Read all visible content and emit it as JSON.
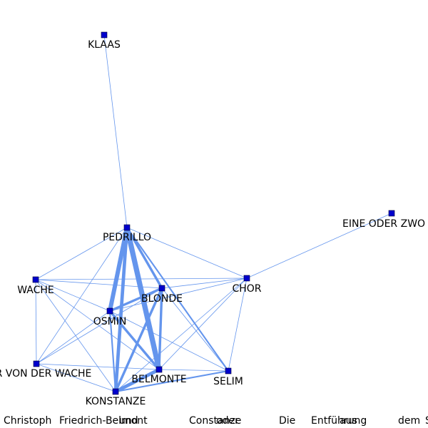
{
  "colors": {
    "edge": "#6495ED",
    "node_fill": "#0000CD",
    "node_stroke": "#000033"
  },
  "nodes": [
    {
      "id": "KLAAS",
      "label": "KLAAS"
    },
    {
      "id": "PEDRILLO",
      "label": "PEDRILLO"
    },
    {
      "id": "EINE ODER ZWO STIMMEN",
      "label": "EINE ODER ZWO ST"
    },
    {
      "id": "WACHE",
      "label": "WACHE"
    },
    {
      "id": "CHOR",
      "label": "CHOR"
    },
    {
      "id": "BLONDE",
      "label": "BLONDE"
    },
    {
      "id": "OSMIN",
      "label": "OSMIN"
    },
    {
      "id": "OFFIZIER VON DER WACHE",
      "label": "R VON DER WACHE"
    },
    {
      "id": "BELMONTE",
      "label": "BELMONTE"
    },
    {
      "id": "SELIM",
      "label": "SELIM"
    },
    {
      "id": "KONSTANZE",
      "label": "KONSTANZE"
    }
  ],
  "edges": [
    {
      "source": "KLAAS",
      "target": "PEDRILLO",
      "weight": 1
    },
    {
      "source": "PEDRILLO",
      "target": "WACHE",
      "weight": 1
    },
    {
      "source": "PEDRILLO",
      "target": "CHOR",
      "weight": 1
    },
    {
      "source": "PEDRILLO",
      "target": "BLONDE",
      "weight": 3
    },
    {
      "source": "PEDRILLO",
      "target": "OSMIN",
      "weight": 5
    },
    {
      "source": "PEDRILLO",
      "target": "OFFIZIER VON DER WACHE",
      "weight": 1
    },
    {
      "source": "PEDRILLO",
      "target": "BELMONTE",
      "weight": 6
    },
    {
      "source": "PEDRILLO",
      "target": "SELIM",
      "weight": 2
    },
    {
      "source": "PEDRILLO",
      "target": "KONSTANZE",
      "weight": 4
    },
    {
      "source": "CHOR",
      "target": "EINE ODER ZWO STIMMEN",
      "weight": 1
    },
    {
      "source": "WACHE",
      "target": "CHOR",
      "weight": 1
    },
    {
      "source": "WACHE",
      "target": "BLONDE",
      "weight": 1
    },
    {
      "source": "WACHE",
      "target": "OFFIZIER VON DER WACHE",
      "weight": 1
    },
    {
      "source": "WACHE",
      "target": "BELMONTE",
      "weight": 1
    },
    {
      "source": "WACHE",
      "target": "KONSTANZE",
      "weight": 1
    },
    {
      "source": "WACHE",
      "target": "OSMIN",
      "weight": 1
    },
    {
      "source": "CHOR",
      "target": "BLONDE",
      "weight": 1
    },
    {
      "source": "CHOR",
      "target": "OSMIN",
      "weight": 1
    },
    {
      "source": "CHOR",
      "target": "BELMONTE",
      "weight": 1
    },
    {
      "source": "CHOR",
      "target": "SELIM",
      "weight": 1
    },
    {
      "source": "CHOR",
      "target": "KONSTANZE",
      "weight": 1
    },
    {
      "source": "BLONDE",
      "target": "OSMIN",
      "weight": 3
    },
    {
      "source": "BLONDE",
      "target": "BELMONTE",
      "weight": 3
    },
    {
      "source": "BLONDE",
      "target": "KONSTANZE",
      "weight": 3
    },
    {
      "source": "BLONDE",
      "target": "SELIM",
      "weight": 1
    },
    {
      "source": "BLONDE",
      "target": "OFFIZIER VON DER WACHE",
      "weight": 1
    },
    {
      "source": "OSMIN",
      "target": "BELMONTE",
      "weight": 3
    },
    {
      "source": "OSMIN",
      "target": "KONSTANZE",
      "weight": 2
    },
    {
      "source": "OSMIN",
      "target": "SELIM",
      "weight": 1
    },
    {
      "source": "OSMIN",
      "target": "OFFIZIER VON DER WACHE",
      "weight": 1
    },
    {
      "source": "OFFIZIER VON DER WACHE",
      "target": "BELMONTE",
      "weight": 1
    },
    {
      "source": "OFFIZIER VON DER WACHE",
      "target": "KONSTANZE",
      "weight": 1
    },
    {
      "source": "BELMONTE",
      "target": "SELIM",
      "weight": 1
    },
    {
      "source": "BELMONTE",
      "target": "KONSTANZE",
      "weight": 4
    },
    {
      "source": "SELIM",
      "target": "KONSTANZE",
      "weight": 2
    }
  ],
  "caption": {
    "words": [
      "Christoph",
      "Friedrich-Belmont",
      "und",
      "Constanze",
      "oder",
      "Die",
      "Entführung",
      "aus",
      "dem",
      "S"
    ]
  }
}
